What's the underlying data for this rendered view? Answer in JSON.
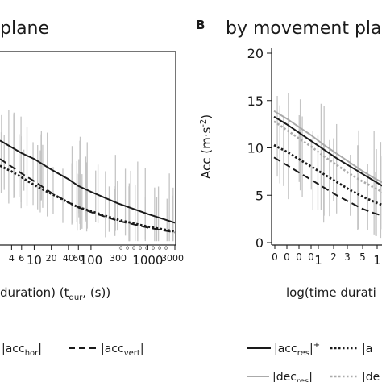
{
  "panel_left": {
    "title": "plane",
    "xlabel": "duration) (t",
    "xlabel_sub": "dur",
    "xlabel_tail": ", (s))",
    "x_ticks": [
      "4",
      "6",
      "10",
      "20",
      "40",
      "60",
      "100",
      "300",
      "1000",
      "3000"
    ],
    "x_ticks_minor": [
      "0",
      "0",
      "0",
      "0",
      "0",
      "0",
      "0",
      "0"
    ]
  },
  "panel_right": {
    "letter": "B",
    "title": "by movement plane",
    "ylabel": "Acc (m·s",
    "ylabel_sup": "-2",
    "ylabel_tail": ")",
    "xlabel": "log(time durati",
    "x_ticks": [
      "0",
      "0",
      "0",
      "0",
      "1",
      "2",
      "3",
      "5",
      "1"
    ],
    "y_ticks": [
      "0",
      "5",
      "10",
      "15",
      "20"
    ]
  },
  "legend": {
    "left_row1": [
      {
        "text": "|acc",
        "sub": "hor",
        "tail": "|",
        "style": "dotted-black",
        "partial_left": true
      },
      {
        "text": "|acc",
        "sub": "vert",
        "tail": "|",
        "style": "dashed-black"
      }
    ],
    "right_row1": [
      {
        "text": "|acc",
        "sub": "res",
        "tail": "|",
        "sup": "+",
        "style": "solid-black"
      },
      {
        "text": "|a",
        "style": "dotted-black"
      }
    ],
    "right_row2": [
      {
        "text": "|dec",
        "sub": "res",
        "tail": "|",
        "style": "solid-gray"
      },
      {
        "text": "|de",
        "style": "dotted-gray"
      }
    ]
  },
  "colors": {
    "black": "#1a1a1a",
    "gray_curve": "#aaaaaa",
    "gray_data": "#c4c4c4"
  },
  "chart_data": [
    {
      "type": "line",
      "title": "plane",
      "xscale": "log",
      "xlim": [
        2.5,
        3000
      ],
      "ylim": [
        0,
        20
      ],
      "series": [
        {
          "style": "solid-black",
          "x": [
            2.5,
            4,
            6,
            10,
            20,
            40,
            60,
            100,
            300,
            1000,
            3000
          ],
          "y": [
            10.8,
            10.1,
            9.5,
            8.9,
            7.8,
            6.8,
            6.1,
            5.5,
            4.3,
            3.2,
            2.3
          ]
        },
        {
          "style": "dotted-black",
          "x": [
            2.5,
            4,
            6,
            10,
            20,
            40,
            60,
            100,
            300,
            1000,
            3000
          ],
          "y": [
            8.2,
            7.6,
            7.0,
            6.2,
            5.3,
            4.4,
            3.9,
            3.5,
            2.6,
            1.9,
            1.4
          ]
        },
        {
          "style": "dashed-black",
          "x": [
            2.5,
            4,
            6,
            10,
            20,
            40,
            60,
            100,
            300,
            1000,
            3000
          ],
          "y": [
            8.9,
            8.1,
            7.4,
            6.6,
            5.4,
            4.4,
            3.9,
            3.4,
            2.5,
            1.8,
            1.3
          ]
        }
      ],
      "legend": [
        "|acc_hor|",
        "|acc_vert|"
      ]
    },
    {
      "type": "line",
      "title": "by movement plane",
      "ylabel": "Acc (m·s-2)",
      "ylim": [
        0,
        20
      ],
      "series": [
        {
          "style": "solid-black",
          "x": [
            0,
            1,
            2,
            3,
            4,
            5,
            6,
            7,
            8,
            9
          ],
          "y": [
            13.3,
            12.5,
            11.6,
            10.7,
            9.8,
            8.9,
            8.1,
            7.3,
            6.5,
            5.7
          ]
        },
        {
          "style": "solid-gray",
          "x": [
            0,
            1,
            2,
            3,
            4,
            5,
            6,
            7,
            8,
            9
          ],
          "y": [
            13.9,
            13.1,
            12.2,
            11.3,
            10.3,
            9.4,
            8.5,
            7.6,
            6.8,
            6.1
          ]
        },
        {
          "style": "dotted-gray",
          "x": [
            0,
            1,
            2,
            3,
            4,
            5,
            6,
            7,
            8,
            9
          ],
          "y": [
            12.8,
            11.9,
            11.0,
            10.1,
            9.1,
            8.2,
            7.3,
            6.5,
            5.8,
            5.1
          ]
        },
        {
          "style": "dotted-black",
          "x": [
            0,
            1,
            2,
            3,
            4,
            5,
            6,
            7,
            8,
            9
          ],
          "y": [
            10.3,
            9.6,
            8.8,
            8.0,
            7.2,
            6.4,
            5.6,
            4.9,
            4.3,
            3.8
          ]
        },
        {
          "style": "dashed-black",
          "x": [
            0,
            1,
            2,
            3,
            4,
            5,
            6,
            7,
            8,
            9
          ],
          "y": [
            9.0,
            8.2,
            7.4,
            6.6,
            5.8,
            5.0,
            4.3,
            3.6,
            3.1,
            2.7
          ]
        }
      ],
      "legend": [
        "|acc_res|+",
        "|dec_res|"
      ]
    }
  ]
}
